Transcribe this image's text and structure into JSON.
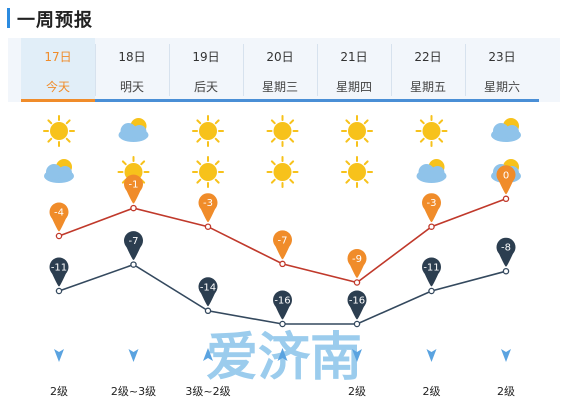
{
  "section": {
    "title": "一周预报"
  },
  "days": [
    {
      "date": "17日",
      "label": "今天",
      "day_icon": "sun-icon",
      "night_icon": "cloud-sun-icon",
      "high": -4,
      "low": -11,
      "wind": "2级",
      "wind_dir": "down"
    },
    {
      "date": "18日",
      "label": "明天",
      "day_icon": "cloud-sun-icon",
      "night_icon": "sun-icon",
      "high": -1,
      "low": -7,
      "wind": "2级~3级",
      "wind_dir": "down"
    },
    {
      "date": "19日",
      "label": "后天",
      "day_icon": "sun-icon",
      "night_icon": "sun-icon",
      "high": -3,
      "low": -14,
      "wind": "3级~2级",
      "wind_dir": "up"
    },
    {
      "date": "20日",
      "label": "星期三",
      "day_icon": "sun-icon",
      "night_icon": "sun-icon",
      "high": -7,
      "low": -16,
      "wind": "",
      "wind_dir": "up"
    },
    {
      "date": "21日",
      "label": "星期四",
      "day_icon": "sun-icon",
      "night_icon": "sun-icon",
      "high": -9,
      "low": -16,
      "wind": "2级",
      "wind_dir": "down"
    },
    {
      "date": "22日",
      "label": "星期五",
      "day_icon": "sun-icon",
      "night_icon": "cloud-sun-icon",
      "high": -3,
      "low": -11,
      "wind": "2级",
      "wind_dir": "down"
    },
    {
      "date": "23日",
      "label": "星期六",
      "day_icon": "cloud-sun-icon",
      "night_icon": "cloud-sun-icon",
      "high": 0,
      "low": -8,
      "wind": "2级",
      "wind_dir": "down"
    }
  ],
  "active_index": 0,
  "watermark": "爱济南",
  "colors": {
    "accent": "#f08c2a",
    "tab_underline": "#4a8fd6",
    "high_line": "#c0392b",
    "high_marker": "#f08c2a",
    "low_line": "#34495e",
    "low_marker": "#2c3e50",
    "sun": "#f7c21b",
    "cloud": "#8fc3ea",
    "wind_arrow": "#5aa3e0",
    "watermark": "#4aa3df"
  }
}
